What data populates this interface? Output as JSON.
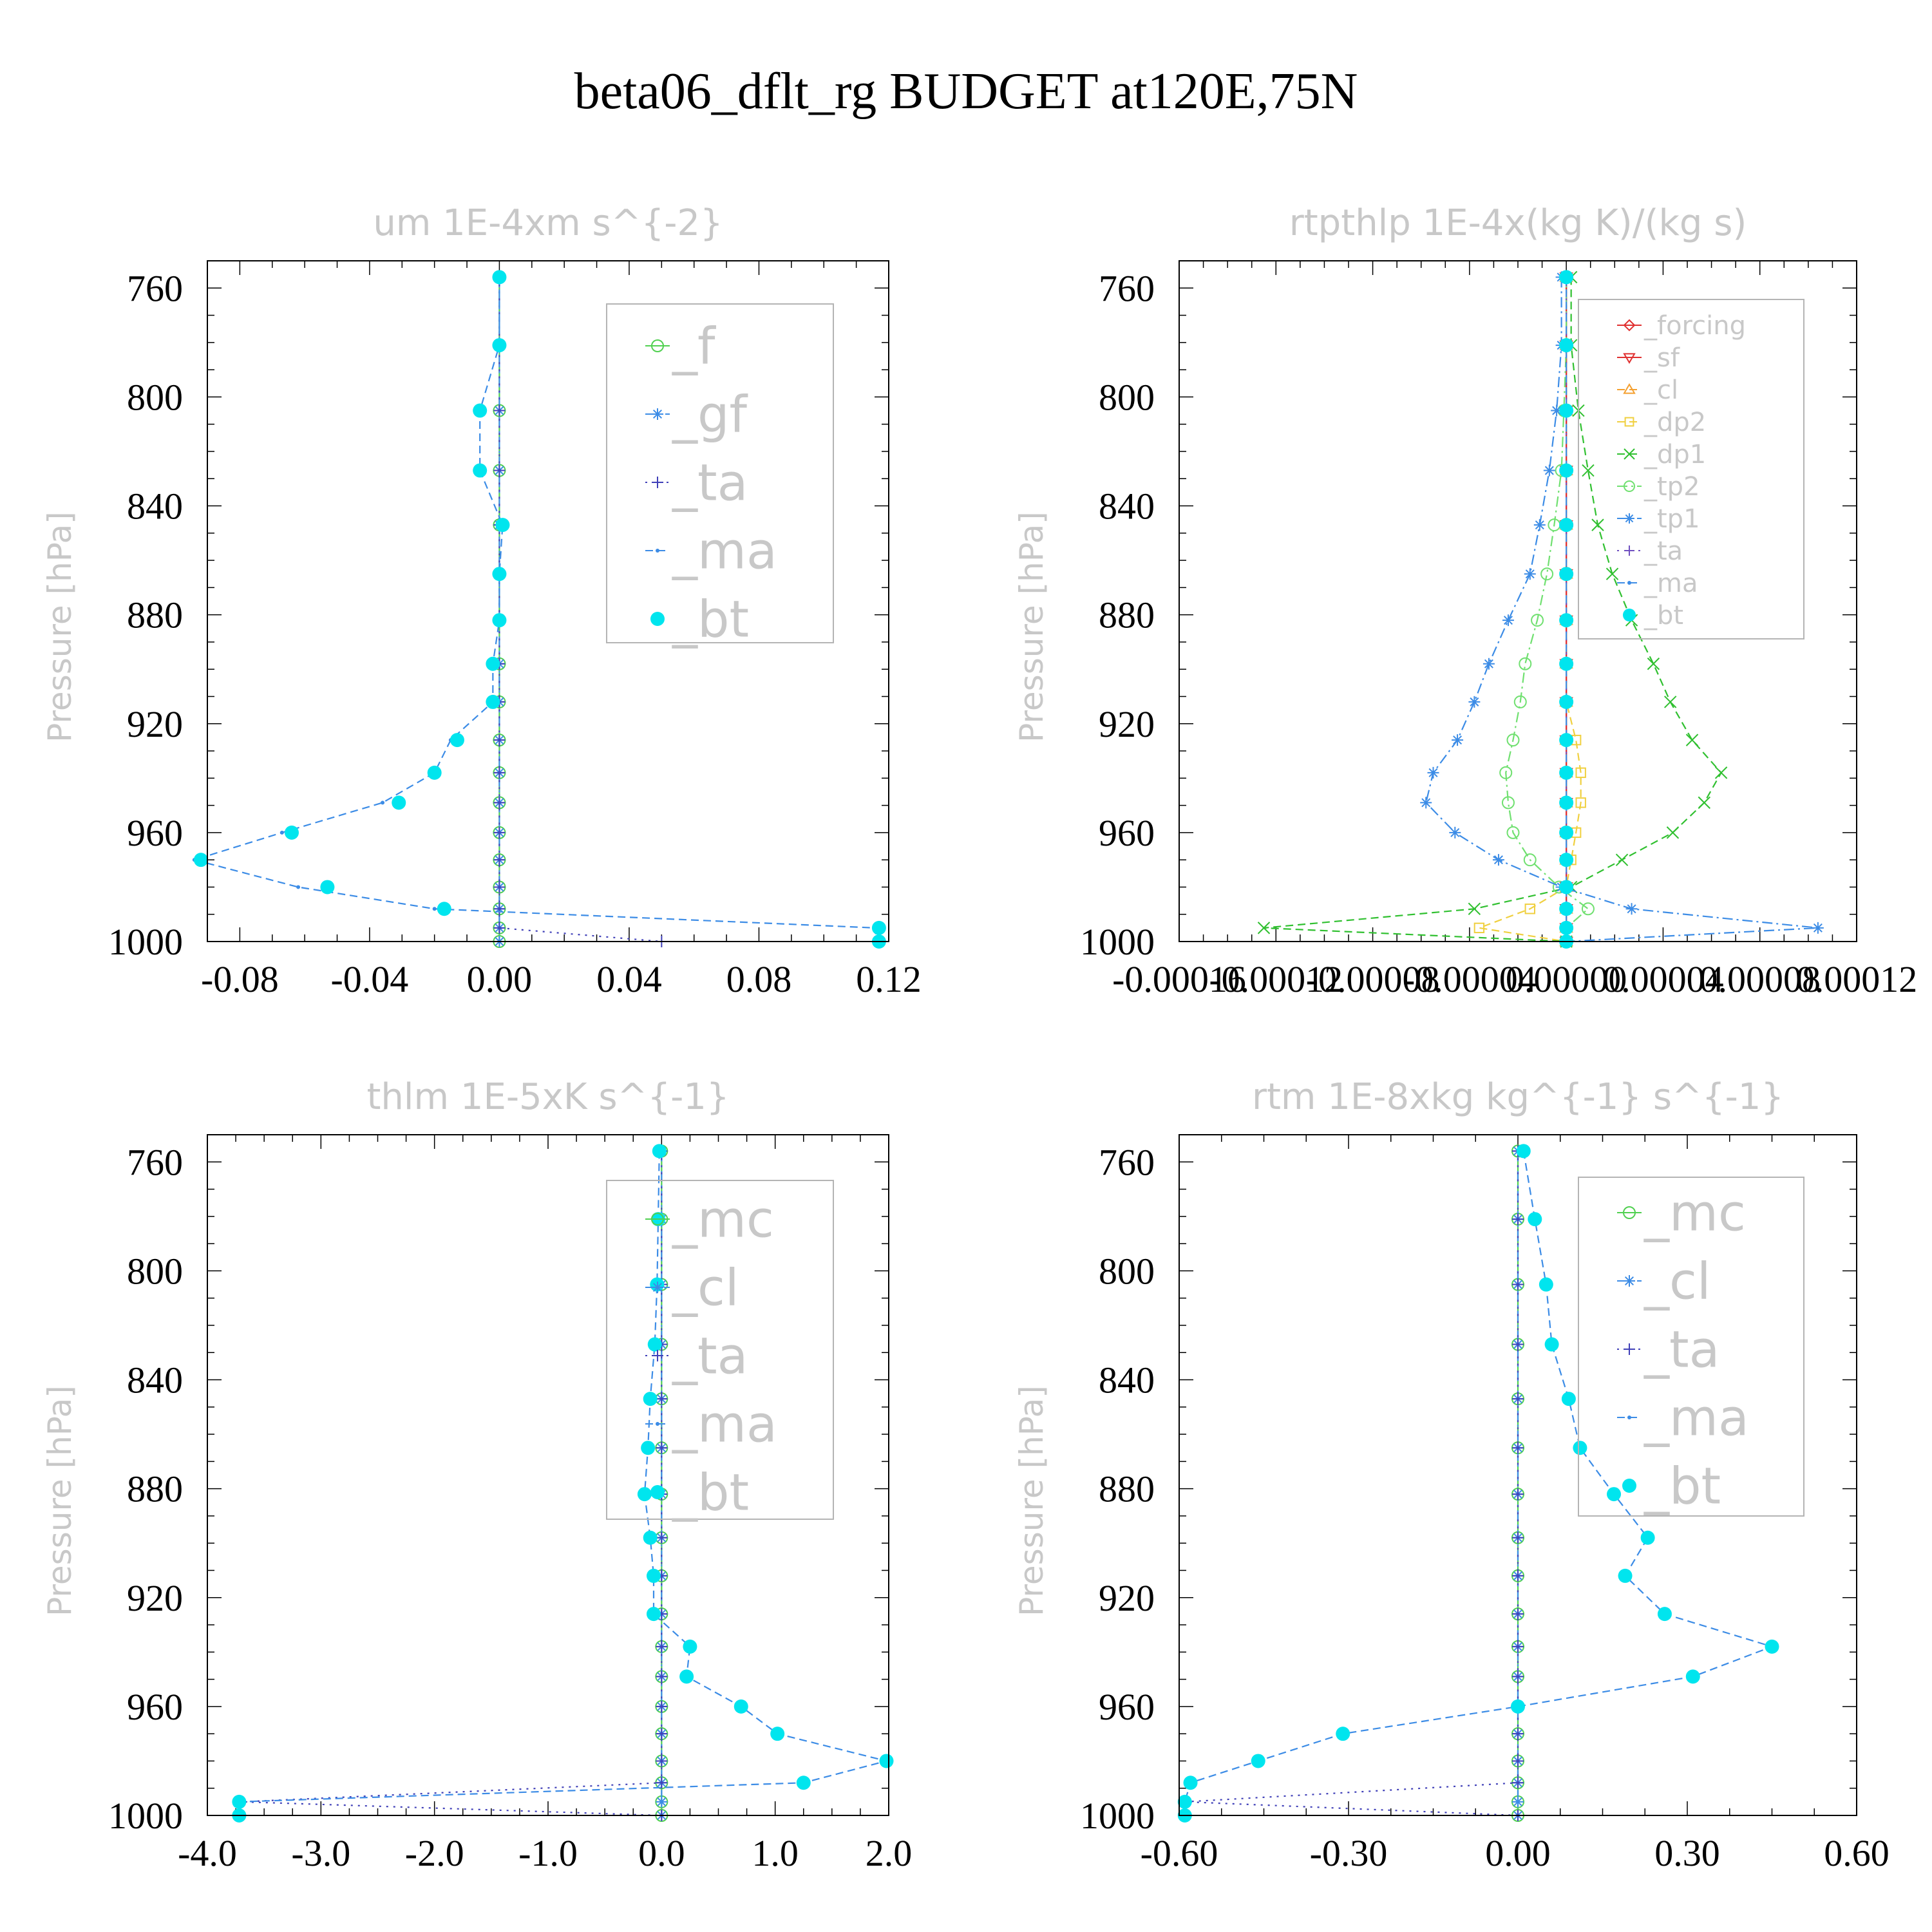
{
  "figure_title": "beta06_dflt_rg  BUDGET at120E,75N",
  "colors": {
    "green": "#50d050",
    "blue": "#3c8ce6",
    "navy": "#4040b8",
    "cyan": "#00e5ee",
    "red": "#e03030",
    "orange": "#f4a030",
    "yellow": "#f0d040",
    "green2": "#30c030",
    "lime": "#70e070",
    "purple": "#7050c0"
  },
  "chart_data": [
    {
      "type": "line",
      "title": "um  1E-4xm s^{-2}",
      "ylabel": "Pressure [hPa]",
      "xlabel": "",
      "ylim": [
        1000,
        750
      ],
      "xlim": [
        -0.09,
        0.12
      ],
      "xticks": [
        "-0.08",
        "-0.04",
        "0.00",
        "0.04",
        "0.08",
        "0.12"
      ],
      "xtick_values": [
        -0.08,
        -0.04,
        0.0,
        0.04,
        0.08,
        0.12
      ],
      "yticks": [
        "760",
        "800",
        "840",
        "880",
        "920",
        "960",
        "1000"
      ],
      "legend_position": "top-right",
      "legend_font": "large",
      "levels": [
        756,
        781,
        805,
        827,
        847,
        865,
        882,
        898,
        912,
        926,
        938,
        949,
        960,
        970,
        980,
        988,
        995,
        1000
      ],
      "series": [
        {
          "name": "_f",
          "color": "green",
          "marker": "circle-open",
          "dash": "solid",
          "values": [
            0,
            0,
            0,
            0,
            0,
            0,
            0,
            0,
            0,
            0,
            0,
            0,
            0,
            0,
            0,
            0,
            0,
            0
          ]
        },
        {
          "name": "_gf",
          "color": "blue",
          "marker": "asterisk",
          "dash": "dashdot",
          "values": [
            0,
            0,
            0,
            0,
            0,
            0,
            0,
            0,
            0,
            0,
            0,
            0,
            0,
            0,
            0,
            0,
            0,
            0
          ]
        },
        {
          "name": "_ta",
          "color": "navy",
          "marker": "plus",
          "dash": "dot",
          "values": [
            0,
            0,
            0,
            0,
            0,
            0,
            0,
            0,
            0,
            0,
            0,
            0,
            0,
            0,
            0,
            0,
            0,
            0.05
          ]
        },
        {
          "name": "_ma",
          "color": "blue",
          "marker": "dot",
          "dash": "dash",
          "values": [
            0,
            0,
            -0.006,
            -0.006,
            0.001,
            0,
            0,
            -0.002,
            -0.002,
            -0.015,
            -0.02,
            -0.036,
            -0.067,
            -0.094,
            -0.062,
            -0.02,
            0.116,
            0.116
          ]
        },
        {
          "name": "_bt",
          "color": "cyan",
          "marker": "filled",
          "dash": "none",
          "values": [
            0,
            0,
            -0.006,
            -0.006,
            0.001,
            0,
            0,
            -0.002,
            -0.002,
            -0.013,
            -0.02,
            -0.031,
            -0.064,
            -0.092,
            -0.053,
            -0.017,
            0.117,
            0.117
          ]
        }
      ]
    },
    {
      "type": "line",
      "title": "rtpthlp  1E-4x(kg K)/(kg s)",
      "ylabel": "Pressure [hPa]",
      "xlabel": "",
      "ylim": [
        1000,
        750
      ],
      "xlim": [
        -0.00016,
        0.00012
      ],
      "xticks": [
        "-0.00016",
        "-0.00012",
        "-0.00008",
        "-0.00004",
        "0.00000",
        "0.00004",
        "0.00008",
        "0.00012"
      ],
      "xtick_values": [
        -0.00016,
        -0.00012,
        -8e-05,
        -4e-05,
        0.0,
        4e-05,
        8e-05,
        0.00012
      ],
      "yticks": [
        "760",
        "800",
        "840",
        "880",
        "920",
        "960",
        "1000"
      ],
      "legend_position": "top-right",
      "legend_font": "small",
      "levels": [
        756,
        781,
        805,
        827,
        847,
        865,
        882,
        898,
        912,
        926,
        938,
        949,
        960,
        970,
        980,
        988,
        995,
        1000
      ],
      "series": [
        {
          "name": "_forcing",
          "color": "red",
          "marker": "diamond-open",
          "dash": "solid",
          "values": [
            0,
            0,
            0,
            0,
            0,
            0,
            0,
            0,
            0,
            0,
            0,
            0,
            0,
            0,
            0,
            0,
            0,
            0
          ]
        },
        {
          "name": "_sf",
          "color": "red",
          "marker": "triangle-down",
          "dash": "solid",
          "values": [
            0,
            0,
            0,
            0,
            0,
            0,
            0,
            0,
            0,
            0,
            0,
            0,
            0,
            0,
            0,
            0,
            0,
            0
          ]
        },
        {
          "name": "_cl",
          "color": "orange",
          "marker": "triangle-up",
          "dash": "dash",
          "values": [
            0,
            0,
            0,
            0,
            0,
            0,
            0,
            0,
            0,
            0,
            0,
            0,
            0,
            0,
            0,
            0,
            0,
            0
          ]
        },
        {
          "name": "_dp2",
          "color": "yellow",
          "marker": "square-open",
          "dash": "dash",
          "values": [
            0,
            0,
            0,
            0,
            0,
            0,
            0,
            0,
            0,
            4e-06,
            6e-06,
            6e-06,
            4e-06,
            2e-06,
            0,
            -1.5e-05,
            -3.6e-05,
            0
          ]
        },
        {
          "name": "_dp1",
          "color": "green2",
          "marker": "x",
          "dash": "dash",
          "values": [
            2e-06,
            2e-06,
            5e-06,
            9e-06,
            1.3e-05,
            1.9e-05,
            2.7e-05,
            3.6e-05,
            4.3e-05,
            5.2e-05,
            6.4e-05,
            5.7e-05,
            4.4e-05,
            2.3e-05,
            2e-06,
            -3.8e-05,
            -0.000125,
            0
          ]
        },
        {
          "name": "_tp2",
          "color": "lime",
          "marker": "circle-open",
          "dash": "dashdot",
          "values": [
            0,
            0,
            -1e-06,
            -2e-06,
            -5e-06,
            -8e-06,
            -1.2e-05,
            -1.7e-05,
            -1.9e-05,
            -2.2e-05,
            -2.5e-05,
            -2.4e-05,
            -2.2e-05,
            -1.5e-05,
            -3e-06,
            9e-06,
            0,
            0
          ]
        },
        {
          "name": "_tp1",
          "color": "blue",
          "marker": "asterisk",
          "dash": "dashdot",
          "values": [
            -2e-06,
            -2e-06,
            -4e-06,
            -7e-06,
            -1.1e-05,
            -1.5e-05,
            -2.4e-05,
            -3.2e-05,
            -3.8e-05,
            -4.5e-05,
            -5.5e-05,
            -5.8e-05,
            -4.6e-05,
            -2.8e-05,
            -2e-06,
            2.7e-05,
            0.000104,
            0
          ]
        },
        {
          "name": "_ta",
          "color": "purple",
          "marker": "plus",
          "dash": "dot",
          "values": [
            0,
            0,
            0,
            0,
            0,
            0,
            0,
            0,
            0,
            0,
            0,
            0,
            0,
            0,
            0,
            0,
            0,
            0
          ]
        },
        {
          "name": "_ma",
          "color": "blue",
          "marker": "dot",
          "dash": "dash",
          "values": [
            0,
            0,
            0,
            0,
            0,
            0,
            0,
            0,
            0,
            0,
            0,
            0,
            0,
            0,
            0,
            0,
            0,
            0
          ]
        },
        {
          "name": "_bt",
          "color": "cyan",
          "marker": "filled",
          "dash": "none",
          "values": [
            0,
            0,
            0,
            0,
            0,
            0,
            0,
            0,
            0,
            0,
            0,
            0,
            0,
            0,
            0,
            0,
            0,
            0
          ]
        }
      ]
    },
    {
      "type": "line",
      "title": "thlm  1E-5xK s^{-1}",
      "ylabel": "Pressure [hPa]",
      "xlabel": "",
      "ylim": [
        1000,
        750
      ],
      "xlim": [
        -4.0,
        2.0
      ],
      "xticks": [
        "-4.0",
        "-3.0",
        "-2.0",
        "-1.0",
        "0.0",
        "1.0",
        "2.0"
      ],
      "xtick_values": [
        -4.0,
        -3.0,
        -2.0,
        -1.0,
        0.0,
        1.0,
        2.0
      ],
      "yticks": [
        "760",
        "800",
        "840",
        "880",
        "920",
        "960",
        "1000"
      ],
      "legend_position": "top-right",
      "legend_font": "large",
      "levels": [
        756,
        781,
        805,
        827,
        847,
        865,
        882,
        898,
        912,
        926,
        938,
        949,
        960,
        970,
        980,
        988,
        995,
        1000
      ],
      "series": [
        {
          "name": "_mc",
          "color": "green",
          "marker": "circle-open",
          "dash": "solid",
          "values": [
            0,
            0,
            0,
            0,
            0,
            0,
            0,
            0,
            0,
            0,
            0,
            0,
            0,
            0,
            0,
            0,
            0,
            0
          ]
        },
        {
          "name": "_cl",
          "color": "blue",
          "marker": "asterisk",
          "dash": "dashdot",
          "values": [
            0,
            0,
            0,
            0,
            0,
            0,
            0,
            0,
            0,
            0,
            0,
            0,
            0,
            0,
            0,
            0,
            0,
            0
          ]
        },
        {
          "name": "_ta",
          "color": "navy",
          "marker": "plus",
          "dash": "dot",
          "values": [
            0,
            0,
            0,
            0,
            0,
            0,
            0,
            0,
            0,
            0,
            0,
            0,
            0,
            0,
            0,
            0,
            -3.7,
            0
          ]
        },
        {
          "name": "_ma",
          "color": "blue",
          "marker": "dot",
          "dash": "dash",
          "values": [
            -0.02,
            -0.03,
            -0.04,
            -0.06,
            -0.1,
            -0.12,
            -0.15,
            -0.1,
            -0.07,
            -0.07,
            0.25,
            0.22,
            0.7,
            1.02,
            1.98,
            1.25,
            -3.72,
            -3.72
          ]
        },
        {
          "name": "_bt",
          "color": "cyan",
          "marker": "filled",
          "dash": "none",
          "values": [
            -0.02,
            -0.03,
            -0.04,
            -0.06,
            -0.1,
            -0.12,
            -0.15,
            -0.1,
            -0.07,
            -0.07,
            0.25,
            0.22,
            0.7,
            1.02,
            1.98,
            1.25,
            -3.72,
            -3.72
          ]
        }
      ]
    },
    {
      "type": "line",
      "title": "rtm  1E-8xkg kg^{-1} s^{-1}",
      "ylabel": "Pressure [hPa]",
      "xlabel": "",
      "ylim": [
        1000,
        750
      ],
      "xlim": [
        -0.6,
        0.6
      ],
      "xticks": [
        "-0.60",
        "-0.30",
        "0.00",
        "0.30",
        "0.60"
      ],
      "xtick_values": [
        -0.6,
        -0.3,
        0.0,
        0.3,
        0.6
      ],
      "yticks": [
        "760",
        "800",
        "840",
        "880",
        "920",
        "960",
        "1000"
      ],
      "legend_position": "top-right",
      "legend_font": "large",
      "levels": [
        756,
        781,
        805,
        827,
        847,
        865,
        882,
        898,
        912,
        926,
        938,
        949,
        960,
        970,
        980,
        988,
        995,
        1000
      ],
      "series": [
        {
          "name": "_mc",
          "color": "green",
          "marker": "circle-open",
          "dash": "solid",
          "values": [
            0,
            0,
            0,
            0,
            0,
            0,
            0,
            0,
            0,
            0,
            0,
            0,
            0,
            0,
            0,
            0,
            0,
            0
          ]
        },
        {
          "name": "_cl",
          "color": "blue",
          "marker": "asterisk",
          "dash": "dashdot",
          "values": [
            0,
            0,
            0,
            0,
            0,
            0,
            0,
            0,
            0,
            0,
            0,
            0,
            0,
            0,
            0,
            0,
            0,
            0
          ]
        },
        {
          "name": "_ta",
          "color": "navy",
          "marker": "plus",
          "dash": "dot",
          "values": [
            0,
            0,
            0,
            0,
            0,
            0,
            0,
            0,
            0,
            0,
            0,
            0,
            0,
            0,
            0,
            0,
            -0.59,
            0
          ]
        },
        {
          "name": "_ma",
          "color": "blue",
          "marker": "dot",
          "dash": "dash",
          "values": [
            0.01,
            0.03,
            0.05,
            0.06,
            0.09,
            0.11,
            0.17,
            0.23,
            0.19,
            0.26,
            0.45,
            0.31,
            0.0,
            -0.31,
            -0.46,
            -0.58,
            -0.59,
            -0.59
          ]
        },
        {
          "name": "_bt",
          "color": "cyan",
          "marker": "filled",
          "dash": "none",
          "values": [
            0.01,
            0.03,
            0.05,
            0.06,
            0.09,
            0.11,
            0.17,
            0.23,
            0.19,
            0.26,
            0.45,
            0.31,
            0.0,
            -0.31,
            -0.46,
            -0.58,
            -0.59,
            -0.59
          ]
        }
      ]
    }
  ]
}
